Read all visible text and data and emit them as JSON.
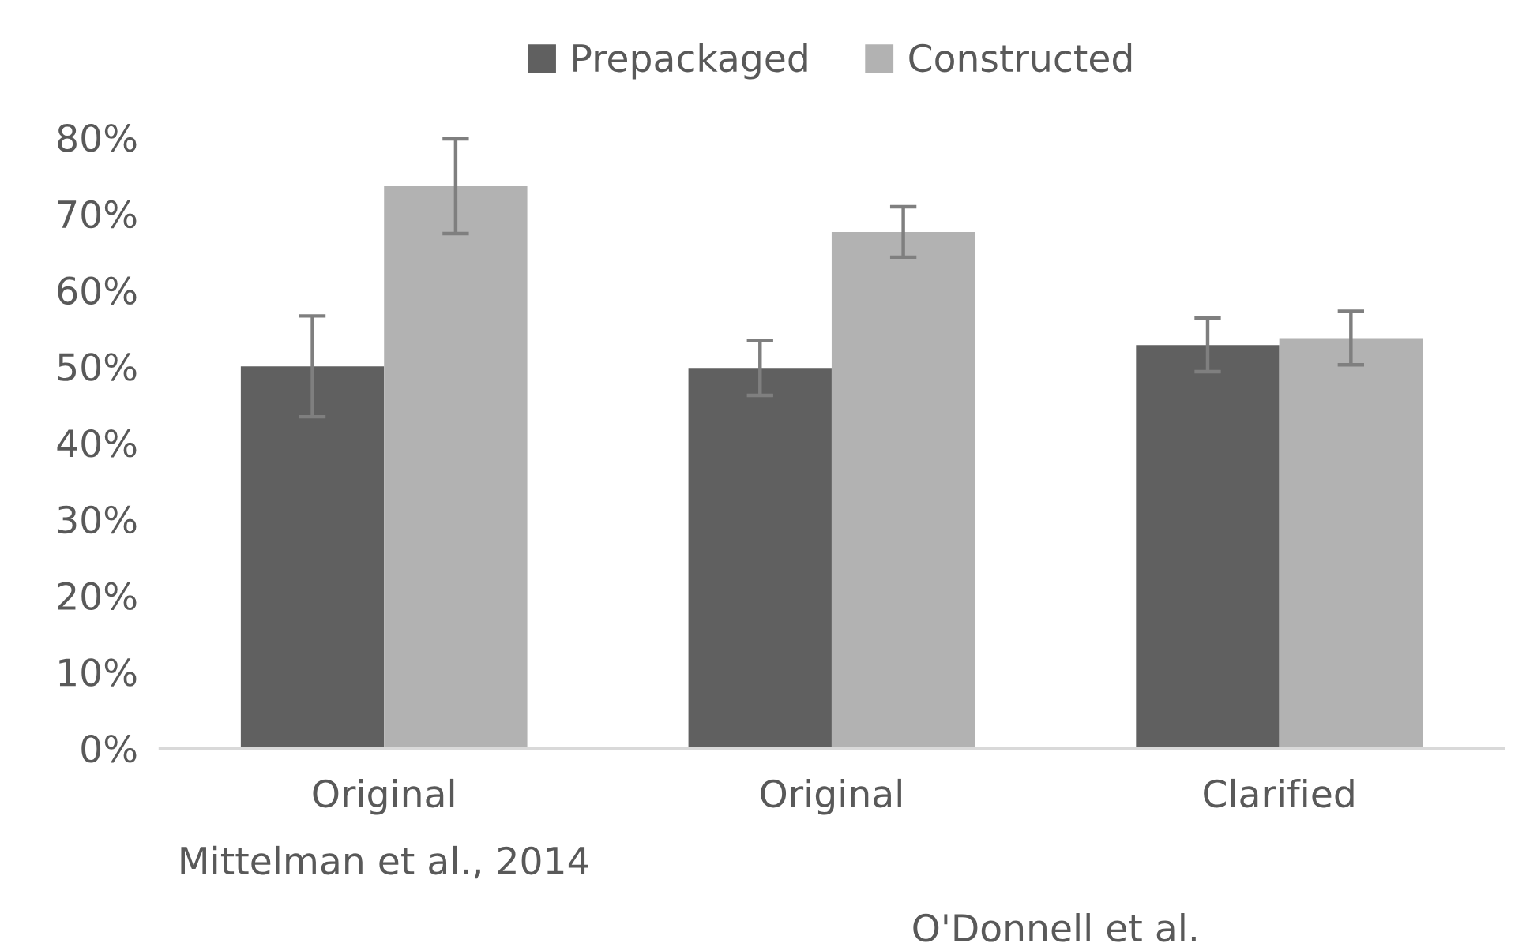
{
  "chart_data": {
    "type": "bar",
    "categories": [
      "Original",
      "Original",
      "Clarified"
    ],
    "series": [
      {
        "name": "Prepackaged",
        "color": "#606060",
        "values": [
          50.0,
          49.8,
          52.8
        ],
        "errors": [
          6.6,
          3.6,
          3.5
        ]
      },
      {
        "name": "Constructed",
        "color": "#b2b2b2",
        "values": [
          73.6,
          67.6,
          53.7
        ],
        "errors": [
          6.2,
          3.3,
          3.5
        ]
      }
    ],
    "ylim": [
      0,
      80
    ],
    "yticks": [
      {
        "value": 0,
        "label": "0%"
      },
      {
        "value": 10,
        "label": "10%"
      },
      {
        "value": 20,
        "label": "20%"
      },
      {
        "value": 30,
        "label": "30%"
      },
      {
        "value": 40,
        "label": "40%"
      },
      {
        "value": 50,
        "label": "50%"
      },
      {
        "value": 60,
        "label": "60%"
      },
      {
        "value": 70,
        "label": "70%"
      },
      {
        "value": 80,
        "label": "80%"
      }
    ],
    "annotations": [
      "Mittelman et al., 2014",
      "O'Donnell et al."
    ],
    "legend": "top",
    "grid": false
  }
}
